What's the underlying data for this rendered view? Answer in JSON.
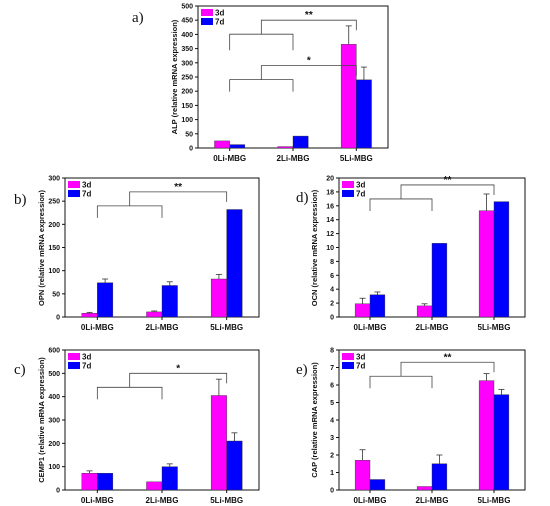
{
  "colors": {
    "series_3d": "#ff00ff",
    "series_7d": "#0000ff",
    "axis": "#111111",
    "bracket": "#444444"
  },
  "chart_data": [
    {
      "panel": "a)",
      "type": "bar",
      "categories": [
        "0Li-MBG",
        "2Li-MBG",
        "5Li-MBG"
      ],
      "ylabel": "ALP (relative mRNA expression)",
      "ylim": [
        0,
        500
      ],
      "yticks": [
        0,
        50,
        100,
        150,
        200,
        250,
        300,
        350,
        400,
        450,
        500
      ],
      "series": [
        {
          "name": "3d",
          "values": [
            25,
            5,
            365
          ],
          "errors": [
            0,
            0,
            65
          ]
        },
        {
          "name": "7d",
          "values": [
            12,
            42,
            240
          ],
          "errors": [
            0,
            0,
            45
          ]
        }
      ],
      "legend": "top-left",
      "significance": [
        {
          "label": "*",
          "from": [
            0,
            1
          ],
          "to": 2,
          "y": 290
        },
        {
          "label": "**",
          "from": [
            0,
            1
          ],
          "to": 2,
          "y": 450
        }
      ]
    },
    {
      "panel": "b)",
      "type": "bar",
      "categories": [
        "0Li-MBG",
        "2Li-MBG",
        "5Li-MBG"
      ],
      "ylabel": "OPN (relative mRNA expression)",
      "ylim": [
        0,
        300
      ],
      "yticks": [
        0,
        50,
        100,
        150,
        200,
        250,
        300
      ],
      "series": [
        {
          "name": "3d",
          "values": [
            8,
            11,
            82
          ],
          "errors": [
            2,
            2,
            10
          ]
        },
        {
          "name": "7d",
          "values": [
            74,
            68,
            232
          ],
          "errors": [
            8,
            8,
            0
          ]
        }
      ],
      "legend": "top-left",
      "significance": [
        {
          "label": "**",
          "from": [
            0,
            1
          ],
          "to": 2,
          "y": 270
        }
      ]
    },
    {
      "panel": "d)",
      "type": "bar",
      "categories": [
        "0Li-MBG",
        "2Li-MBG",
        "5Li-MBG"
      ],
      "ylabel": "OCN (relative mRNA expression)",
      "ylim": [
        0,
        20
      ],
      "yticks": [
        0,
        2,
        4,
        6,
        8,
        10,
        12,
        14,
        16,
        18,
        20
      ],
      "series": [
        {
          "name": "3d",
          "values": [
            1.9,
            1.6,
            15.3
          ],
          "errors": [
            0.8,
            0.3,
            2.4
          ]
        },
        {
          "name": "7d",
          "values": [
            3.2,
            10.6,
            16.6
          ],
          "errors": [
            0.4,
            0,
            0
          ]
        }
      ],
      "legend": "top-left",
      "significance": [
        {
          "label": "**",
          "from": [
            0,
            1
          ],
          "to": 2,
          "y": 19.0
        }
      ]
    },
    {
      "panel": "c)",
      "type": "bar",
      "categories": [
        "0Li-MBG",
        "2Li-MBG",
        "5Li-MBG"
      ],
      "ylabel": "CEMP1 (relative mRNA expression)",
      "ylim": [
        0,
        600
      ],
      "yticks": [
        0,
        100,
        200,
        300,
        400,
        500,
        600
      ],
      "series": [
        {
          "name": "3d",
          "values": [
            72,
            35,
            405
          ],
          "errors": [
            10,
            0,
            70
          ]
        },
        {
          "name": "7d",
          "values": [
            72,
            100,
            210
          ],
          "errors": [
            0,
            12,
            35
          ]
        }
      ],
      "legend": "top-left",
      "significance": [
        {
          "label": "*",
          "from": [
            0,
            1
          ],
          "to": 2,
          "y": 500
        }
      ]
    },
    {
      "panel": "e)",
      "type": "bar",
      "categories": [
        "0Li-MBG",
        "2Li-MBG",
        "5Li-MBG"
      ],
      "ylabel": "CAP (relative mRNA expression)",
      "ylim": [
        0,
        8
      ],
      "yticks": [
        0,
        1,
        2,
        3,
        4,
        5,
        6,
        7,
        8
      ],
      "series": [
        {
          "name": "3d",
          "values": [
            1.7,
            0.2,
            6.25
          ],
          "errors": [
            0.6,
            0,
            0.4
          ]
        },
        {
          "name": "7d",
          "values": [
            0.6,
            1.5,
            5.45
          ],
          "errors": [
            0,
            0.5,
            0.3
          ]
        }
      ],
      "legend": "top-left",
      "significance": [
        {
          "label": "**",
          "from": [
            0,
            1
          ],
          "to": 2,
          "y": 7.3
        }
      ]
    }
  ]
}
